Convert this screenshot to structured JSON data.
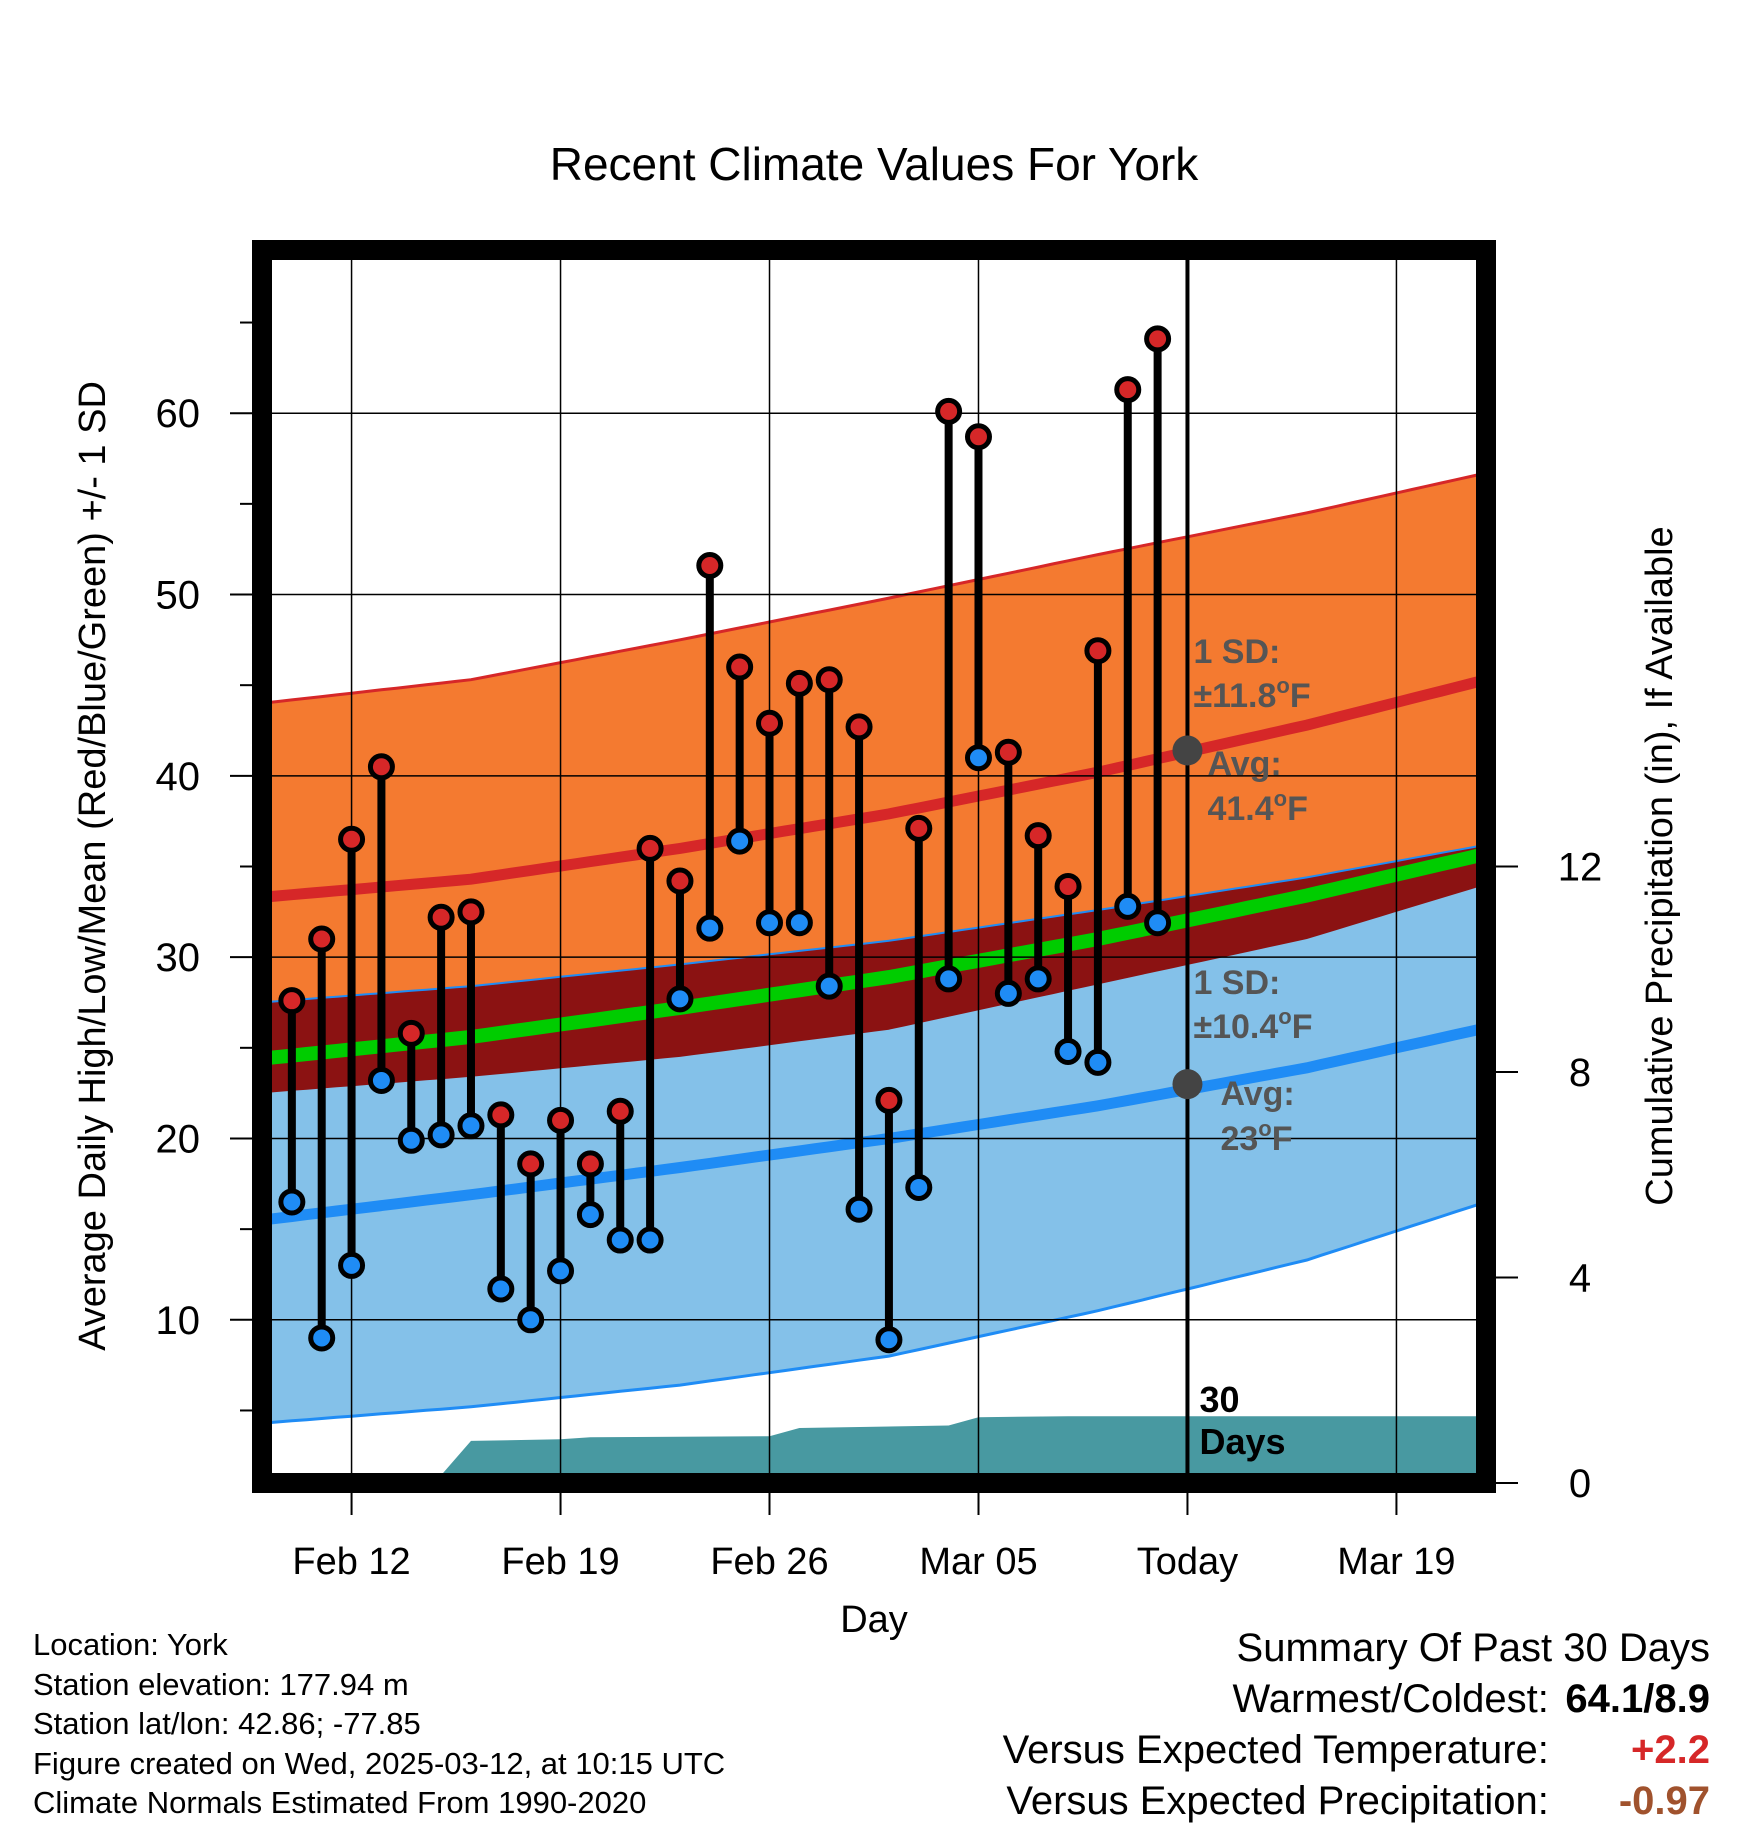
{
  "chart_data": {
    "type": "line",
    "title": "Recent Climate Values For York",
    "xlabel": "Day",
    "ylabel": "Average Daily High/Low/Mean (Red/Blue/Green) +/- 1 SD",
    "y2label": "Cumulative Precipitation (in), If Available",
    "x_range": [
      "2025-02-09",
      "2025-03-22"
    ],
    "ylim": [
      1,
      69
    ],
    "y2lim": [
      0,
      24
    ],
    "yticks": [
      10,
      20,
      30,
      40,
      50,
      60
    ],
    "y2ticks": [
      0,
      4,
      8,
      12
    ],
    "xticks": [
      {
        "date": "2025-02-12",
        "label": "Feb 12"
      },
      {
        "date": "2025-02-19",
        "label": "Feb 19"
      },
      {
        "date": "2025-02-26",
        "label": "Feb 26"
      },
      {
        "date": "2025-03-05",
        "label": "Mar 05"
      },
      {
        "date": "2025-03-12",
        "label": "Today"
      },
      {
        "date": "2025-03-19",
        "label": "Mar 19"
      }
    ],
    "grid": true,
    "today": "2025-03-12",
    "colors": {
      "high_band": "#f47a30",
      "low_band": "#84c1e9",
      "overlap_band": "#8b1212",
      "high_line": "#d62728",
      "low_line": "#1f8cf5",
      "mean_line": "#00cc00",
      "precip": "#4899a1",
      "high_dot": "#d62728",
      "low_dot": "#1f8cf5",
      "avg_marker": "#444444",
      "annotation": "#555555"
    },
    "normals": {
      "dates": [
        "2025-02-09",
        "2025-02-16",
        "2025-02-23",
        "2025-03-02",
        "2025-03-09",
        "2025-03-16",
        "2025-03-22"
      ],
      "avg_high": [
        33.3,
        34.3,
        36.0,
        37.9,
        40.2,
        42.8,
        45.3
      ],
      "avg_low": [
        15.5,
        16.9,
        18.4,
        20.0,
        21.8,
        23.9,
        26.1
      ],
      "avg_mean": [
        24.4,
        25.6,
        27.2,
        28.9,
        31.0,
        33.4,
        35.7
      ],
      "high_plus_sd": [
        44.0,
        45.3,
        47.5,
        49.8,
        52.2,
        54.5,
        56.7
      ],
      "high_minus_sd": [
        22.5,
        23.4,
        24.5,
        26.0,
        28.5,
        31.0,
        34.0
      ],
      "low_plus_sd": [
        27.5,
        28.4,
        29.6,
        30.9,
        32.6,
        34.4,
        36.2
      ],
      "low_minus_sd": [
        4.3,
        5.2,
        6.4,
        8.0,
        10.5,
        13.3,
        16.5
      ]
    },
    "series": [
      {
        "name": "High",
        "dates": [
          "2025-02-10",
          "2025-02-11",
          "2025-02-12",
          "2025-02-13",
          "2025-02-14",
          "2025-02-15",
          "2025-02-16",
          "2025-02-17",
          "2025-02-18",
          "2025-02-19",
          "2025-02-20",
          "2025-02-21",
          "2025-02-22",
          "2025-02-23",
          "2025-02-24",
          "2025-02-25",
          "2025-02-26",
          "2025-02-27",
          "2025-02-28",
          "2025-03-01",
          "2025-03-02",
          "2025-03-03",
          "2025-03-04",
          "2025-03-05",
          "2025-03-06",
          "2025-03-07",
          "2025-03-08",
          "2025-03-09",
          "2025-03-10",
          "2025-03-11"
        ],
        "values": [
          27.6,
          31.0,
          36.5,
          40.5,
          25.8,
          32.2,
          32.5,
          21.3,
          18.6,
          21.0,
          18.6,
          21.5,
          36.0,
          34.2,
          51.6,
          46.0,
          42.9,
          45.1,
          45.3,
          42.7,
          22.1,
          37.1,
          60.1,
          58.7,
          41.3,
          36.7,
          33.9,
          46.9,
          61.3,
          64.1
        ]
      },
      {
        "name": "Low",
        "dates": [
          "2025-02-10",
          "2025-02-11",
          "2025-02-12",
          "2025-02-13",
          "2025-02-14",
          "2025-02-15",
          "2025-02-16",
          "2025-02-17",
          "2025-02-18",
          "2025-02-19",
          "2025-02-20",
          "2025-02-21",
          "2025-02-22",
          "2025-02-23",
          "2025-02-24",
          "2025-02-25",
          "2025-02-26",
          "2025-02-27",
          "2025-02-28",
          "2025-03-01",
          "2025-03-02",
          "2025-03-03",
          "2025-03-04",
          "2025-03-05",
          "2025-03-06",
          "2025-03-07",
          "2025-03-08",
          "2025-03-09",
          "2025-03-10",
          "2025-03-11"
        ],
        "values": [
          16.5,
          9.0,
          13.0,
          23.2,
          19.9,
          20.2,
          20.7,
          11.7,
          10.0,
          12.7,
          15.8,
          14.4,
          14.4,
          27.7,
          31.6,
          36.4,
          31.9,
          31.9,
          28.4,
          16.1,
          8.9,
          17.3,
          28.8,
          41.0,
          28.0,
          28.8,
          24.8,
          24.2,
          32.8,
          31.9
        ]
      },
      {
        "name": "Cumulative Precipitation",
        "dates": [
          "2025-02-12",
          "2025-02-13",
          "2025-02-14",
          "2025-02-15",
          "2025-02-16",
          "2025-02-19",
          "2025-02-20",
          "2025-02-26",
          "2025-02-27",
          "2025-03-03",
          "2025-03-04",
          "2025-03-05",
          "2025-03-08",
          "2025-03-22"
        ],
        "values": [
          0,
          0,
          0,
          0.15,
          0.82,
          0.85,
          0.89,
          0.91,
          1.07,
          1.11,
          1.12,
          1.28,
          1.3,
          1.3
        ]
      }
    ],
    "annotations": {
      "high_sd": {
        "line1": "1 SD:",
        "line2": "±11.8",
        "unit": "F",
        "avg_label": "Avg:",
        "avg_value": "41.4",
        "marker_value": 41.4
      },
      "low_sd": {
        "line1": "1 SD:",
        "line2": "±10.4",
        "unit": "F",
        "avg_label": "Avg:",
        "avg_value": "23",
        "marker_value": 23.0
      },
      "window_label_1": "30",
      "window_label_2": "Days"
    }
  },
  "info": {
    "location": "Location: York",
    "elevation": "Station elevation: 177.94 m",
    "latlon": "Station lat/lon: 42.86; -77.85",
    "created": "Figure created on Wed, 2025-03-12, at 10:15 UTC",
    "normals": "Climate Normals Estimated From 1990-2020"
  },
  "summary": {
    "title": "Summary Of Past 30 Days",
    "warmest_coldest_label": "Warmest/Coldest:",
    "warmest_coldest_value": "64.1/8.9",
    "temp_label": "Versus Expected Temperature:",
    "temp_value": "+2.2",
    "temp_color": "#d62728",
    "precip_label": "Versus Expected Precipitation:",
    "precip_value": "-0.97",
    "precip_color": "#a0522d"
  }
}
